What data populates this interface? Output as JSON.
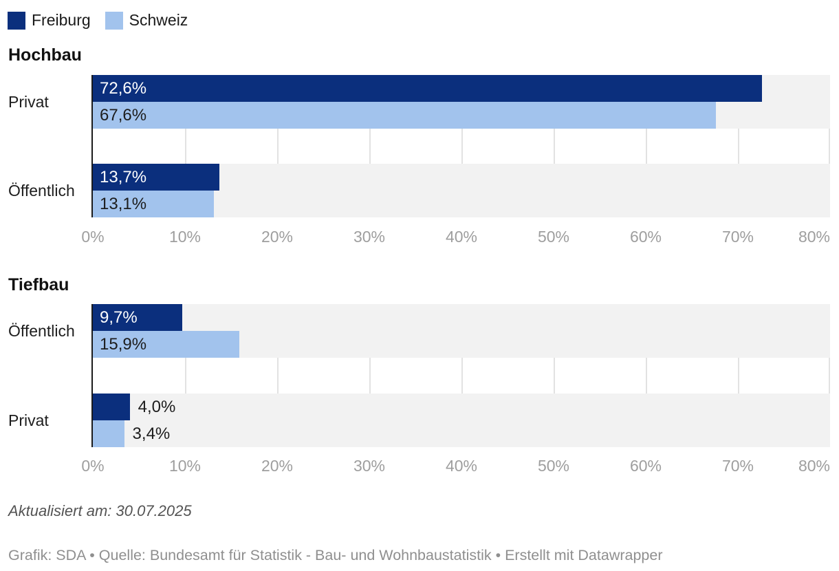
{
  "legend": {
    "items": [
      {
        "label": "Freiburg",
        "color": "#0b2f7d"
      },
      {
        "label": "Schweiz",
        "color": "#a2c3ed"
      }
    ]
  },
  "chart_data": [
    {
      "type": "bar",
      "orientation": "horizontal",
      "title": "Hochbau",
      "categories": [
        "Privat",
        "Öffentlich"
      ],
      "series": [
        {
          "name": "Freiburg",
          "color": "#0b2f7d",
          "values": [
            72.6,
            13.7
          ],
          "labels": [
            "72,6%",
            "13,7%"
          ]
        },
        {
          "name": "Schweiz",
          "color": "#a2c3ed",
          "values": [
            67.6,
            13.1
          ],
          "labels": [
            "67,6%",
            "13,1%"
          ]
        }
      ],
      "xlim": [
        0,
        80
      ],
      "xticks": [
        "0%",
        "10%",
        "20%",
        "30%",
        "40%",
        "50%",
        "60%",
        "70%",
        "80%"
      ],
      "grid": true,
      "legend_position": "top"
    },
    {
      "type": "bar",
      "orientation": "horizontal",
      "title": "Tiefbau",
      "categories": [
        "Öffentlich",
        "Privat"
      ],
      "series": [
        {
          "name": "Freiburg",
          "color": "#0b2f7d",
          "values": [
            9.7,
            4.0
          ],
          "labels": [
            "9,7%",
            "4,0%"
          ]
        },
        {
          "name": "Schweiz",
          "color": "#a2c3ed",
          "values": [
            15.9,
            3.4
          ],
          "labels": [
            "15,9%",
            "3,4%"
          ]
        }
      ],
      "xlim": [
        0,
        80
      ],
      "xticks": [
        "0%",
        "10%",
        "20%",
        "30%",
        "40%",
        "50%",
        "60%",
        "70%",
        "80%"
      ],
      "grid": true,
      "legend_position": "top"
    }
  ],
  "colors": {
    "band_background": "#f2f2f2",
    "gridline": "#e2e2e2",
    "axis_line": "#1a1a1a",
    "tick_text": "#9e9e9e"
  },
  "footer": {
    "updated": "Aktualisiert am: 30.07.2025",
    "byline": "Grafik: SDA • Quelle: Bundesamt für Statistik - Bau- und Wohnbaustatistik • Erstellt mit Datawrapper"
  }
}
